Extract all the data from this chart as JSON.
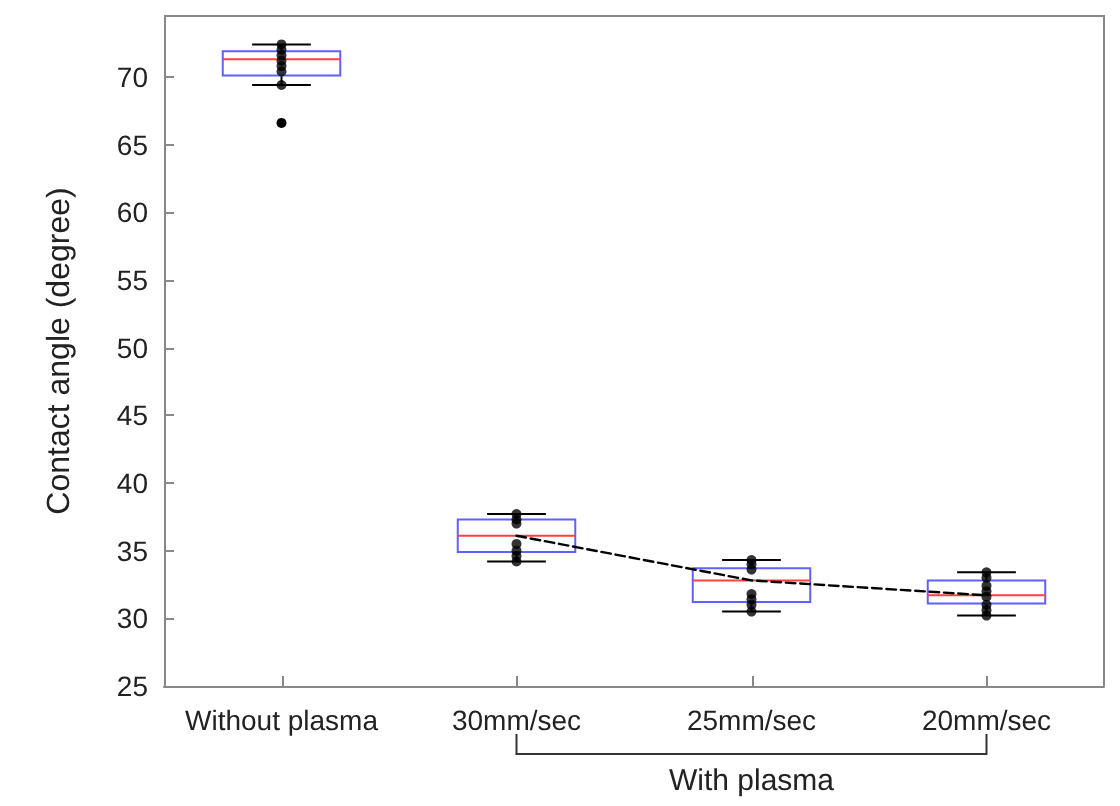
{
  "chart_data": {
    "type": "box",
    "ylabel": "Contact angle (degree)",
    "categories": [
      "Without plasma",
      "30mm/sec",
      "25mm/sec",
      "20mm/sec"
    ],
    "ylim": [
      25,
      74.5
    ],
    "yticks": [
      25,
      30,
      35,
      40,
      45,
      50,
      55,
      60,
      65,
      70
    ],
    "grid": false,
    "annotations": [
      "With plasma"
    ],
    "series": [
      {
        "color": "#6060ff",
        "boxes": [
          {
            "low": 69.4,
            "q1": 70.1,
            "median": 71.3,
            "q3": 71.9,
            "high": 72.4,
            "outliers": [
              66.6
            ]
          },
          {
            "low": 34.2,
            "q1": 34.9,
            "median": 36.1,
            "q3": 37.3,
            "high": 37.7
          },
          {
            "low": 30.5,
            "q1": 31.2,
            "median": 32.8,
            "q3": 33.7,
            "high": 34.3
          },
          {
            "low": 30.2,
            "q1": 31.1,
            "median": 31.7,
            "q3": 32.8,
            "high": 33.4
          }
        ]
      },
      {
        "type": "scatter",
        "color": "#000000",
        "marker": "circle",
        "x": [
          "Without plasma",
          "Without plasma",
          "Without plasma",
          "Without plasma",
          "Without plasma",
          "Without plasma",
          "Without plasma",
          "30mm/sec",
          "30mm/sec",
          "30mm/sec",
          "30mm/sec",
          "30mm/sec",
          "30mm/sec",
          "30mm/sec",
          "25mm/sec",
          "25mm/sec",
          "25mm/sec",
          "25mm/sec",
          "25mm/sec",
          "25mm/sec",
          "25mm/sec",
          "20mm/sec",
          "20mm/sec",
          "20mm/sec",
          "20mm/sec",
          "20mm/sec",
          "20mm/sec",
          "20mm/sec",
          "20mm/sec"
        ],
        "values": [
          72.4,
          72.0,
          71.6,
          71.2,
          70.8,
          70.4,
          69.4,
          37.7,
          37.3,
          37.0,
          35.5,
          35.0,
          34.6,
          34.2,
          34.3,
          34.0,
          33.6,
          31.8,
          31.4,
          31.0,
          30.5,
          33.4,
          33.0,
          32.4,
          32.0,
          31.6,
          31.0,
          30.6,
          30.2
        ]
      },
      {
        "type": "line",
        "color": "#000000",
        "line_style": "dashed",
        "marker": "none",
        "x": [
          "30mm/sec",
          "25mm/sec",
          "20mm/sec"
        ],
        "values": [
          36.1,
          32.8,
          31.7
        ]
      }
    ]
  }
}
